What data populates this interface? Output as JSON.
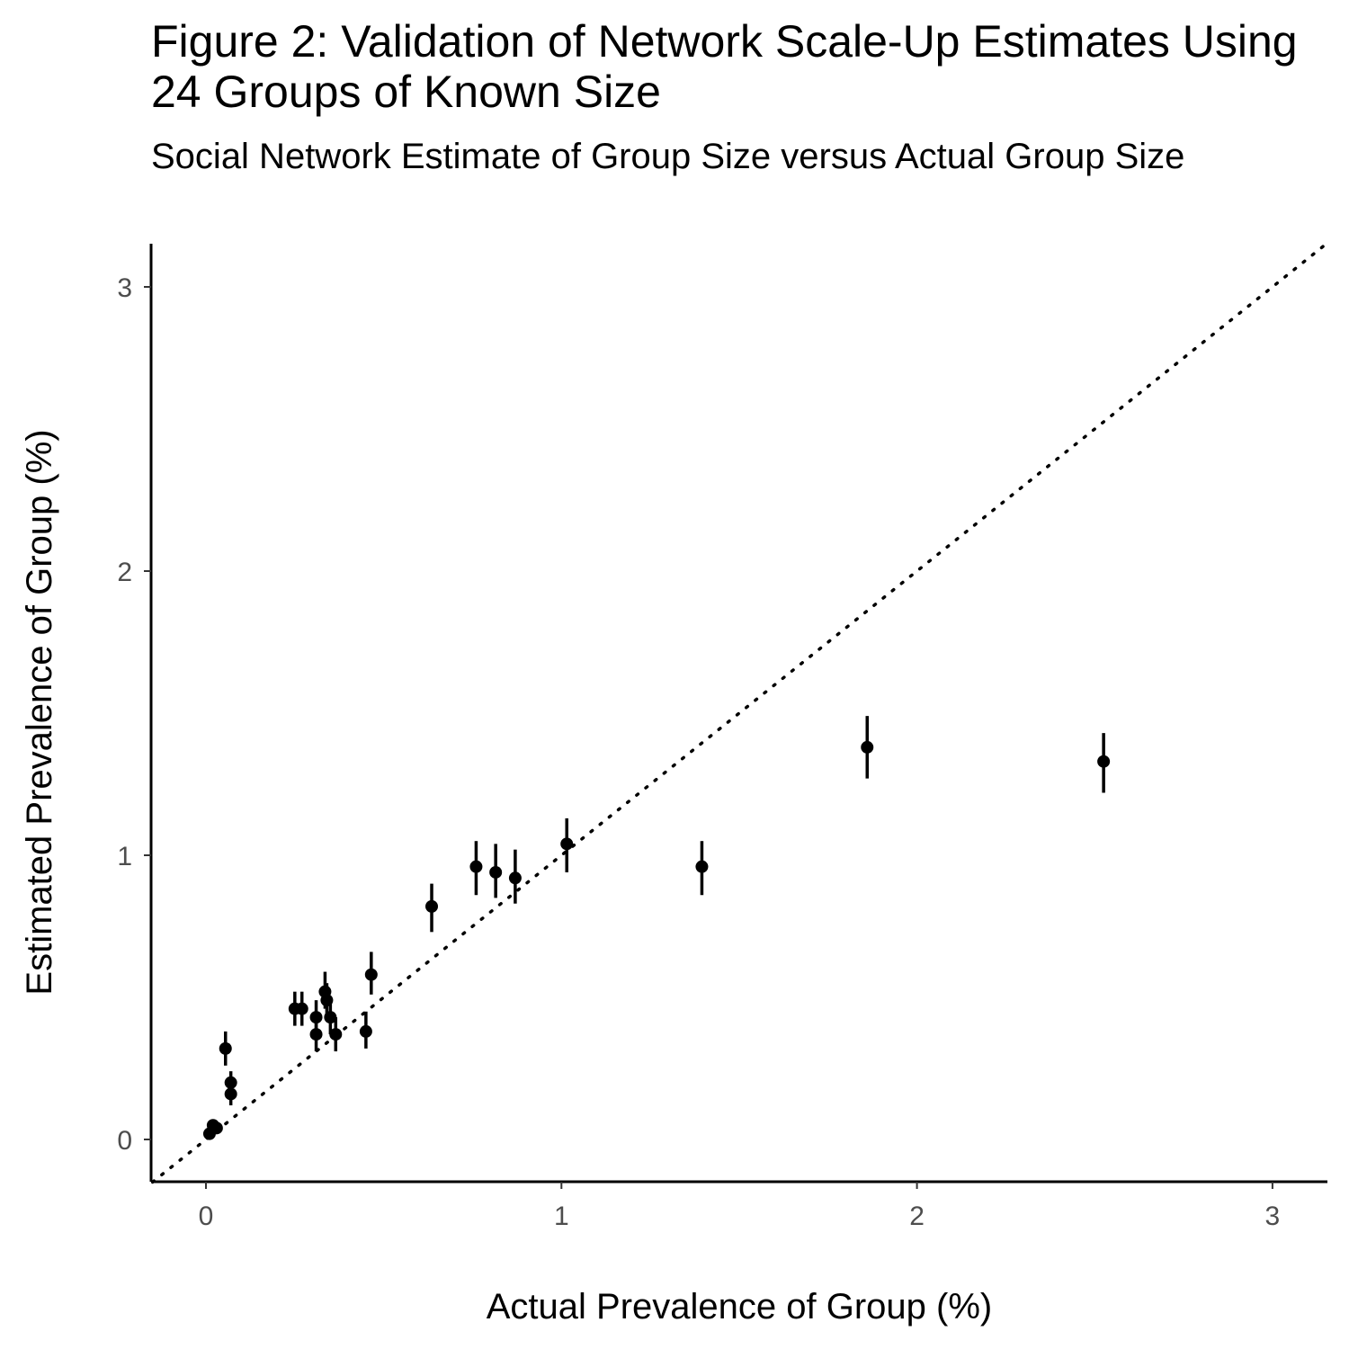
{
  "chart_data": {
    "type": "scatter",
    "title": "Figure 2: Validation of Network Scale-Up Estimates Using 24 Groups of Known Size",
    "subtitle": "Social Network Estimate of Group Size versus Actual Group Size",
    "xlabel": "Actual Prevalence of Group (%)",
    "ylabel": "Estimated Prevalence of Group (%)",
    "xlim": [
      -0.15,
      3.15
    ],
    "ylim": [
      -0.15,
      3.15
    ],
    "x_ticks": [
      "0",
      "1",
      "2",
      "3"
    ],
    "y_ticks": [
      "0",
      "1",
      "2",
      "3"
    ],
    "grid": false,
    "reference_line": "y = x (dotted)",
    "points": [
      {
        "x": 0.01,
        "y": 0.02,
        "lo": 0.0,
        "hi": 0.04
      },
      {
        "x": 0.02,
        "y": 0.05,
        "lo": 0.03,
        "hi": 0.07
      },
      {
        "x": 0.03,
        "y": 0.04,
        "lo": 0.02,
        "hi": 0.06
      },
      {
        "x": 0.055,
        "y": 0.32,
        "lo": 0.26,
        "hi": 0.38
      },
      {
        "x": 0.07,
        "y": 0.2,
        "lo": 0.15,
        "hi": 0.24
      },
      {
        "x": 0.07,
        "y": 0.16,
        "lo": 0.12,
        "hi": 0.21
      },
      {
        "x": 0.25,
        "y": 0.46,
        "lo": 0.4,
        "hi": 0.52
      },
      {
        "x": 0.27,
        "y": 0.46,
        "lo": 0.4,
        "hi": 0.52
      },
      {
        "x": 0.31,
        "y": 0.43,
        "lo": 0.37,
        "hi": 0.49
      },
      {
        "x": 0.31,
        "y": 0.37,
        "lo": 0.31,
        "hi": 0.43
      },
      {
        "x": 0.335,
        "y": 0.52,
        "lo": 0.46,
        "hi": 0.59
      },
      {
        "x": 0.34,
        "y": 0.49,
        "lo": 0.43,
        "hi": 0.55
      },
      {
        "x": 0.35,
        "y": 0.43,
        "lo": 0.37,
        "hi": 0.49
      },
      {
        "x": 0.365,
        "y": 0.37,
        "lo": 0.31,
        "hi": 0.43
      },
      {
        "x": 0.45,
        "y": 0.38,
        "lo": 0.32,
        "hi": 0.45
      },
      {
        "x": 0.465,
        "y": 0.58,
        "lo": 0.51,
        "hi": 0.66
      },
      {
        "x": 0.635,
        "y": 0.82,
        "lo": 0.73,
        "hi": 0.9
      },
      {
        "x": 0.76,
        "y": 0.96,
        "lo": 0.86,
        "hi": 1.05
      },
      {
        "x": 0.815,
        "y": 0.94,
        "lo": 0.85,
        "hi": 1.04
      },
      {
        "x": 0.87,
        "y": 0.92,
        "lo": 0.83,
        "hi": 1.02
      },
      {
        "x": 1.015,
        "y": 1.04,
        "lo": 0.94,
        "hi": 1.13
      },
      {
        "x": 1.395,
        "y": 0.96,
        "lo": 0.86,
        "hi": 1.05
      },
      {
        "x": 1.86,
        "y": 1.38,
        "lo": 1.27,
        "hi": 1.49
      },
      {
        "x": 2.525,
        "y": 1.33,
        "lo": 1.22,
        "hi": 1.43
      }
    ]
  }
}
